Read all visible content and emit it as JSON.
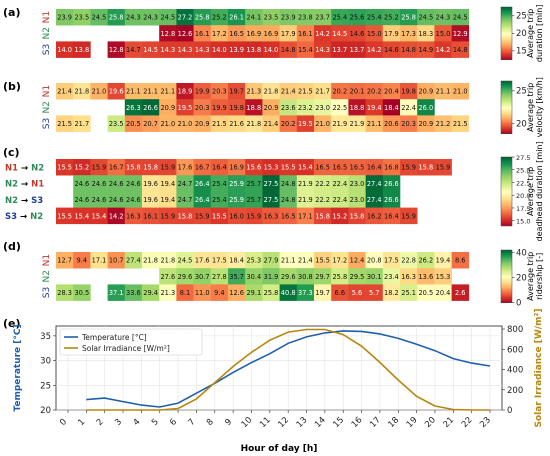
{
  "panel_labels": [
    "(a)",
    "(b)",
    "(c)",
    "(d)",
    "(e)"
  ],
  "chart_data": [
    {
      "type": "heatmap",
      "panel": "(a)",
      "rows": [
        "N1",
        "N2",
        "S3"
      ],
      "row_colors": [
        "#c0392b",
        "#2e8b57",
        "#1f3d99"
      ],
      "columns": [
        "0",
        "1",
        "2",
        "3",
        "4",
        "5",
        "6",
        "7",
        "8",
        "9",
        "10",
        "11",
        "12",
        "13",
        "14",
        "15",
        "16",
        "17",
        "18",
        "19",
        "20",
        "21",
        "22",
        "23"
      ],
      "values": [
        [
          23.9,
          23.5,
          24.5,
          25.8,
          24.3,
          24.3,
          24.5,
          27.2,
          25.8,
          25.2,
          26.1,
          24.1,
          23.5,
          23.9,
          23.8,
          23.7,
          25.4,
          25.6,
          25.4,
          25.2,
          25.8,
          24.5,
          24.3,
          24.5
        ],
        [
          null,
          null,
          null,
          null,
          null,
          null,
          12.8,
          12.6,
          16.1,
          17.2,
          16.5,
          16.9,
          16.9,
          17.9,
          16.1,
          14.2,
          14.5,
          14.6,
          15.0,
          17.9,
          17.3,
          18.3,
          15.0,
          12.9
        ],
        [
          14.0,
          13.8,
          null,
          12.8,
          14.7,
          14.5,
          14.3,
          14.3,
          14.3,
          14.0,
          13.9,
          13.8,
          14.0,
          14.8,
          15.4,
          14.3,
          13.7,
          13.7,
          14.2,
          14.6,
          14.8,
          14.9,
          14.2,
          14.8
        ]
      ],
      "colorbar_label": "Average trip duration [min]",
      "colorbar_ticks": [
        15,
        20,
        25
      ],
      "colorbar_range": [
        12.5,
        27.5
      ],
      "colormap": "RdYlGn"
    },
    {
      "type": "heatmap",
      "panel": "(b)",
      "rows": [
        "N1",
        "N2",
        "S3"
      ],
      "row_colors": [
        "#c0392b",
        "#2e8b57",
        "#1f3d99"
      ],
      "columns": [
        "0",
        "1",
        "2",
        "3",
        "4",
        "5",
        "6",
        "7",
        "8",
        "9",
        "10",
        "11",
        "12",
        "13",
        "14",
        "15",
        "16",
        "17",
        "18",
        "19",
        "20",
        "21",
        "22",
        "23"
      ],
      "values": [
        [
          21.4,
          21.8,
          21.0,
          19.6,
          21.1,
          21.1,
          21.1,
          18.9,
          19.9,
          20.3,
          19.7,
          21.3,
          21.8,
          21.4,
          21.5,
          21.7,
          20.2,
          20.1,
          20.2,
          20.4,
          19.8,
          20.9,
          21.1,
          21.0
        ],
        [
          null,
          null,
          null,
          null,
          26.3,
          26.6,
          20.9,
          19.5,
          20.3,
          19.9,
          19.8,
          18.8,
          20.9,
          23.6,
          23.2,
          23.0,
          22.5,
          18.8,
          19.4,
          18.4,
          22.4,
          26.0,
          null,
          null
        ],
        [
          21.5,
          21.7,
          null,
          23.5,
          20.5,
          20.7,
          21.0,
          21.0,
          20.9,
          21.5,
          21.6,
          21.8,
          21.4,
          20.2,
          19.5,
          21.0,
          21.9,
          21.9,
          21.1,
          20.6,
          20.3,
          20.9,
          21.2,
          21.5
        ]
      ],
      "colorbar_label": "Average trip velocity [km/h]",
      "colorbar_ticks": [
        20,
        25
      ],
      "colorbar_range": [
        18.5,
        26.5
      ],
      "colormap": "RdYlGn"
    },
    {
      "type": "heatmap",
      "panel": "(c)",
      "rows": [
        "N1 → N2",
        "N2 → N1",
        "N2 → S3",
        "S3 → N2"
      ],
      "row_colors": [
        [
          "#c0392b",
          "#2e8b57"
        ],
        [
          "#2e8b57",
          "#c0392b"
        ],
        [
          "#2e8b57",
          "#1f3d99"
        ],
        [
          "#1f3d99",
          "#2e8b57"
        ]
      ],
      "columns": [
        "0",
        "1",
        "2",
        "3",
        "4",
        "5",
        "6",
        "7",
        "8",
        "9",
        "10",
        "11",
        "12",
        "13",
        "14",
        "15",
        "16",
        "17",
        "18",
        "19",
        "20",
        "21",
        "22",
        "23"
      ],
      "values": [
        [
          15.5,
          15.2,
          15.9,
          16.7,
          15.8,
          15.8,
          15.9,
          17.6,
          16.7,
          16.4,
          16.9,
          15.6,
          15.3,
          15.5,
          15.4,
          16.5,
          16.5,
          16.5,
          16.4,
          16.8,
          15.9,
          15.8,
          15.9,
          null
        ],
        [
          null,
          24.6,
          24.6,
          24.6,
          24.6,
          19.6,
          19.4,
          24.7,
          26.4,
          25.4,
          25.9,
          25.7,
          27.5,
          24.8,
          21.9,
          22.2,
          22.4,
          23.0,
          27.4,
          26.6,
          null,
          null,
          null,
          null
        ],
        [
          null,
          24.6,
          24.6,
          24.6,
          24.6,
          19.6,
          19.4,
          24.7,
          26.4,
          25.4,
          25.9,
          25.7,
          27.5,
          24.8,
          21.9,
          22.2,
          22.4,
          23.0,
          27.4,
          26.6,
          null,
          null,
          null,
          null
        ],
        [
          15.5,
          15.4,
          15.4,
          14.2,
          16.3,
          16.1,
          15.9,
          15.8,
          15.9,
          15.5,
          16.0,
          15.9,
          16.3,
          16.5,
          17.1,
          15.8,
          15.2,
          15.8,
          16.2,
          16.4,
          15.9,
          null,
          null,
          null
        ]
      ],
      "colorbar_label": "Average trip deadhead duration [min]",
      "colorbar_ticks": [
        15.0,
        17.5,
        20.0,
        22.5,
        25.0,
        27.5
      ],
      "colorbar_range": [
        14.0,
        27.5
      ],
      "colormap": "RdYlGn"
    },
    {
      "type": "heatmap",
      "panel": "(d)",
      "rows": [
        "N1",
        "N2",
        "S3"
      ],
      "row_colors": [
        "#c0392b",
        "#2e8b57",
        "#1f3d99"
      ],
      "columns": [
        "0",
        "1",
        "2",
        "3",
        "4",
        "5",
        "6",
        "7",
        "8",
        "9",
        "10",
        "11",
        "12",
        "13",
        "14",
        "15",
        "16",
        "17",
        "18",
        "19",
        "20",
        "21",
        "22",
        "23"
      ],
      "values": [
        [
          12.7,
          9.4,
          17.1,
          10.7,
          27.4,
          21.8,
          21.8,
          24.5,
          17.6,
          17.5,
          18.4,
          25.3,
          27.9,
          21.1,
          21.4,
          15.5,
          17.2,
          12.4,
          20.8,
          17.5,
          22.8,
          26.2,
          19.4,
          8.6
        ],
        [
          null,
          null,
          null,
          null,
          null,
          null,
          27.6,
          29.6,
          30.7,
          27.8,
          35.7,
          30.4,
          31.9,
          29.6,
          30.8,
          29.7,
          25.8,
          29.5,
          30.1,
          23.4,
          16.3,
          13.6,
          15.3,
          null
        ],
        [
          28.3,
          30.5,
          null,
          37.1,
          33.6,
          29.4,
          21.3,
          8.1,
          11.0,
          9.4,
          12.6,
          29.1,
          25.8,
          40.8,
          37.3,
          19.7,
          6.6,
          5.6,
          5.7,
          18.2,
          25.1,
          20.5,
          20.4,
          2.6
        ]
      ],
      "colorbar_label": "Average trip ridership [-]",
      "colorbar_ticks": [
        0,
        20,
        40
      ],
      "colorbar_range": [
        0,
        42
      ],
      "colormap": "RdYlGn"
    },
    {
      "type": "line",
      "panel": "(e)",
      "x": [
        0,
        1,
        2,
        3,
        4,
        5,
        6,
        7,
        8,
        9,
        10,
        11,
        12,
        13,
        14,
        15,
        16,
        17,
        18,
        19,
        20,
        21,
        22,
        23
      ],
      "xlabel": "Hour of day [h]",
      "series": [
        {
          "name": "Temperature [°C]",
          "axis": "left",
          "color": "#1f5fae",
          "values": [
            null,
            22.1,
            22.4,
            21.7,
            21.0,
            20.6,
            21.4,
            23.4,
            25.4,
            27.6,
            29.6,
            31.4,
            33.5,
            34.8,
            35.6,
            36.0,
            35.9,
            35.4,
            34.5,
            33.3,
            32.0,
            30.4,
            29.5,
            28.9
          ]
        },
        {
          "name": "Solar Irradiance [W/m²]",
          "axis": "right",
          "color": "#b8860b",
          "values": [
            null,
            0,
            0,
            0,
            0,
            0,
            15,
            110,
            270,
            430,
            570,
            690,
            770,
            795,
            795,
            745,
            630,
            470,
            295,
            135,
            40,
            5,
            0,
            0
          ]
        }
      ],
      "left_axis": {
        "label": "Temperature [°C]",
        "ticks": [
          20,
          25,
          30,
          35
        ],
        "range": [
          20,
          37
        ]
      },
      "right_axis": {
        "label": "Solar Irradiance [W/m²]",
        "ticks": [
          0,
          200,
          400,
          600,
          800
        ],
        "range": [
          0,
          830
        ]
      },
      "legend_position": "top-left",
      "grid": true
    }
  ]
}
